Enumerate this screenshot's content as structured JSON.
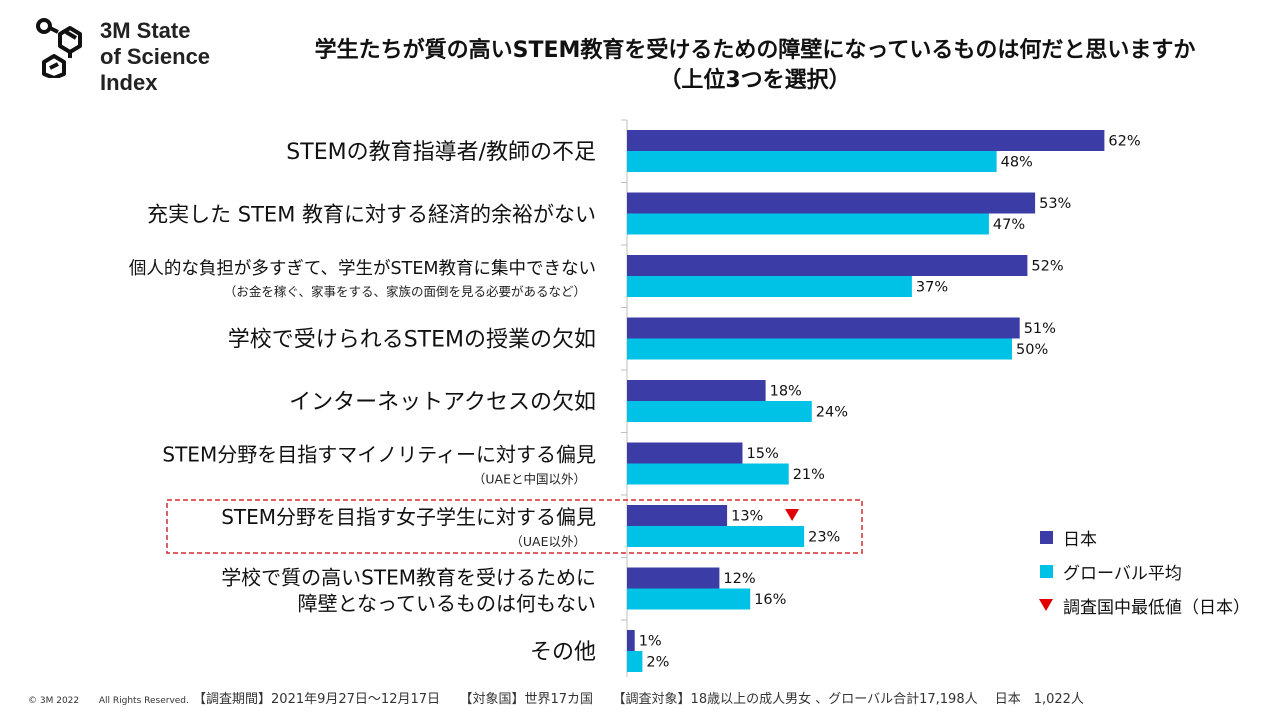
{
  "logo": {
    "line1": "3M State",
    "line2": "of Science",
    "line3": "Index"
  },
  "title": {
    "line1": "学生たちが質の高いSTEM教育を受けるための障壁になっているものは何だと思いますか",
    "line2": "（上位3つを選択）"
  },
  "colors": {
    "japan": "#3c3ca6",
    "global": "#00c2e6",
    "marker": "#e00000",
    "highlight_box": "#d42b2b"
  },
  "legend": {
    "japan": "日本",
    "global": "グローバル平均",
    "lowest": "調査国中最低値（日本）"
  },
  "footer": {
    "copyright": "© 3M  2022",
    "rights": "All Rights Reserved.",
    "note": "【調査期間】2021年9月27日〜12月17日　　【対象国】世界17カ国　　【調査対象】18歳以上の成人男女 、グローバル合計17,198人　 日本　1,022人"
  },
  "chart_data": {
    "type": "bar",
    "orientation": "horizontal",
    "xlim": [
      0,
      100
    ],
    "categories": [
      {
        "label": "STEMの教育指導者/教師の不足",
        "sub": ""
      },
      {
        "label": "充実した STEM 教育に対する経済的余裕がない",
        "sub": ""
      },
      {
        "label": "個人的な負担が多すぎて、学生がSTEM教育に集中できない",
        "sub": "（お金を稼ぐ、家事をする、家族の面倒を見る必要があるなど）"
      },
      {
        "label": "学校で受けられるSTEMの授業の欠如",
        "sub": ""
      },
      {
        "label": "インターネットアクセスの欠如",
        "sub": ""
      },
      {
        "label": "STEM分野を目指すマイノリティーに対する偏見",
        "sub": "（UAEと中国以外）"
      },
      {
        "label": "STEM分野を目指す女子学生に対する偏見",
        "sub": "（UAE以外）"
      },
      {
        "label": "学校で質の高いSTEM教育を受けるために",
        "label2": "障壁となっているものは何もない",
        "sub": ""
      },
      {
        "label": "その他",
        "sub": ""
      }
    ],
    "series": [
      {
        "name": "日本",
        "values": [
          62,
          53,
          52,
          51,
          18,
          15,
          13,
          12,
          1
        ]
      },
      {
        "name": "グローバル平均",
        "values": [
          48,
          47,
          37,
          50,
          24,
          21,
          23,
          16,
          2
        ]
      }
    ],
    "value_suffix": "%",
    "lowest_marker_index": 6,
    "highlight_index": 6
  }
}
